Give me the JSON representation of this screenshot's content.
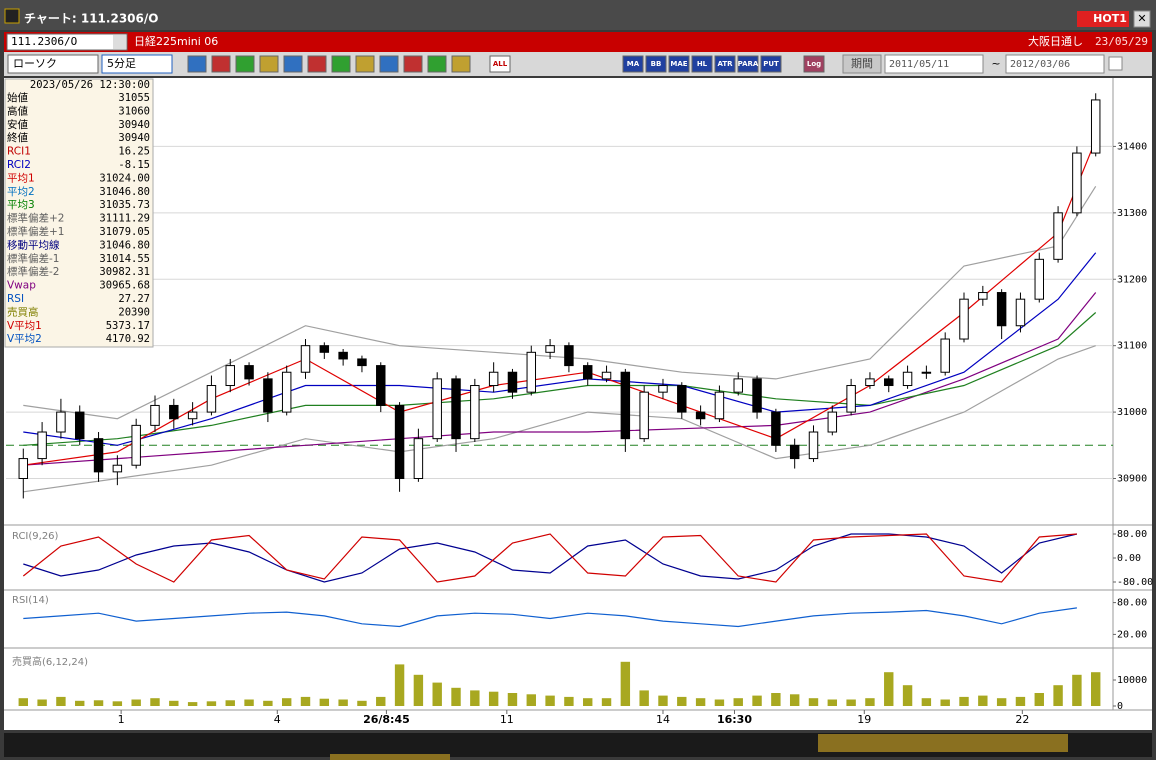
{
  "window": {
    "title": "チャート: 111.2306/O",
    "hot": "HOT1"
  },
  "header": {
    "symbol": "111.2306/O",
    "name": "日経225mini 06",
    "market": "大阪日通し",
    "date": "23/05/29"
  },
  "toolbar": {
    "chart_type": "ローソク",
    "interval": "5分足",
    "icons": [
      "ALL",
      "MA",
      "BB",
      "MAE",
      "HL",
      "ATR",
      "PARA",
      "PUT",
      "Log"
    ],
    "period_button": "期間",
    "date_from": "2011/05/11",
    "tilde": "~",
    "date_to": "2012/03/06"
  },
  "info_panel": {
    "datetime": "2023/05/26 12:30:00",
    "rows": [
      {
        "label": "始値",
        "value": "31055",
        "color": "#000000"
      },
      {
        "label": "高値",
        "value": "31060",
        "color": "#000000"
      },
      {
        "label": "安値",
        "value": "30940",
        "color": "#000000"
      },
      {
        "label": "終値",
        "value": "30940",
        "color": "#000000"
      },
      {
        "label": "RCI1",
        "value": "16.25",
        "color": "#c00000"
      },
      {
        "label": "RCI2",
        "value": "-8.15",
        "color": "#0000c0"
      },
      {
        "label": "平均1",
        "value": "31024.00",
        "color": "#d00000"
      },
      {
        "label": "平均2",
        "value": "31046.80",
        "color": "#0070c0"
      },
      {
        "label": "平均3",
        "value": "31035.73",
        "color": "#008000"
      },
      {
        "label": "標準偏差+2",
        "value": "31111.29",
        "color": "#606060"
      },
      {
        "label": "標準偏差+1",
        "value": "31079.05",
        "color": "#606060"
      },
      {
        "label": "移動平均線",
        "value": "31046.80",
        "color": "#000080"
      },
      {
        "label": "標準偏差-1",
        "value": "31014.55",
        "color": "#606060"
      },
      {
        "label": "標準偏差-2",
        "value": "30982.31",
        "color": "#606060"
      },
      {
        "label": "Vwap",
        "value": "30965.68",
        "color": "#800080"
      },
      {
        "label": "RSI",
        "value": "27.27",
        "color": "#0050c0"
      },
      {
        "label": "売買高",
        "value": "20390",
        "color": "#808000"
      },
      {
        "label": "V平均1",
        "value": "5373.17",
        "color": "#d00000"
      },
      {
        "label": "V平均2",
        "value": "4170.92",
        "color": "#0050c0"
      }
    ]
  },
  "chart_data": [
    {
      "type": "candlestick",
      "ylim": [
        30830,
        31500
      ],
      "yticks": [
        30900,
        31000,
        31100,
        31200,
        31300,
        31400
      ],
      "grid": true,
      "xlim": [
        -0.6,
        57.6
      ],
      "xticks": [
        {
          "value": 5.2,
          "label": "1"
        },
        {
          "value": 13.5,
          "label": "4"
        },
        {
          "value": 19.3,
          "label": "26/8:45"
        },
        {
          "value": 25.7,
          "label": "11"
        },
        {
          "value": 34,
          "label": "14"
        },
        {
          "value": 37.8,
          "label": "16:30"
        },
        {
          "value": 44.7,
          "label": "19"
        },
        {
          "value": 53.1,
          "label": "22"
        }
      ],
      "up_color": "#ffffff",
      "down_color": "#000000",
      "reference_line": 30950,
      "reference_color": "#208020",
      "ohlc": [
        [
          30900,
          30945,
          30870,
          30930
        ],
        [
          30930,
          30985,
          30920,
          30970
        ],
        [
          30970,
          31020,
          30960,
          31000
        ],
        [
          31000,
          31010,
          30950,
          30960
        ],
        [
          30960,
          30970,
          30895,
          30910
        ],
        [
          30910,
          30935,
          30890,
          30920
        ],
        [
          30920,
          30990,
          30915,
          30980
        ],
        [
          30980,
          31025,
          30970,
          31010
        ],
        [
          31010,
          31020,
          30975,
          30990
        ],
        [
          30990,
          31015,
          30980,
          31000
        ],
        [
          31000,
          31055,
          30995,
          31040
        ],
        [
          31040,
          31080,
          31030,
          31070
        ],
        [
          31070,
          31075,
          31040,
          31050
        ],
        [
          31050,
          31060,
          30985,
          31000
        ],
        [
          31000,
          31070,
          30995,
          31060
        ],
        [
          31060,
          31110,
          31050,
          31100
        ],
        [
          31100,
          31105,
          31080,
          31090
        ],
        [
          31090,
          31095,
          31070,
          31080
        ],
        [
          31080,
          31085,
          31060,
          31070
        ],
        [
          31070,
          31075,
          31000,
          31010
        ],
        [
          31010,
          31015,
          30880,
          30900
        ],
        [
          30900,
          30975,
          30895,
          30960
        ],
        [
          30960,
          31060,
          30955,
          31050
        ],
        [
          31050,
          31055,
          30940,
          30960
        ],
        [
          30960,
          31050,
          30955,
          31040
        ],
        [
          31040,
          31075,
          31030,
          31060
        ],
        [
          31060,
          31065,
          31020,
          31030
        ],
        [
          31030,
          31100,
          31025,
          31090
        ],
        [
          31090,
          31110,
          31080,
          31100
        ],
        [
          31100,
          31105,
          31060,
          31070
        ],
        [
          31070,
          31075,
          31040,
          31050
        ],
        [
          31050,
          31070,
          31045,
          31060
        ],
        [
          31060,
          31065,
          30940,
          30960
        ],
        [
          30960,
          31040,
          30955,
          31030
        ],
        [
          31030,
          31050,
          31020,
          31040
        ],
        [
          31040,
          31045,
          30990,
          31000
        ],
        [
          31000,
          31010,
          30980,
          30990
        ],
        [
          30990,
          31040,
          30985,
          31030
        ],
        [
          31030,
          31060,
          31025,
          31050
        ],
        [
          31050,
          31055,
          30990,
          31000
        ],
        [
          31000,
          31005,
          30940,
          30950
        ],
        [
          30950,
          30960,
          30915,
          30930
        ],
        [
          30930,
          30980,
          30925,
          30970
        ],
        [
          30970,
          31010,
          30965,
          31000
        ],
        [
          31000,
          31050,
          30995,
          31040
        ],
        [
          31040,
          31060,
          31035,
          31050
        ],
        [
          31050,
          31055,
          31030,
          31040
        ],
        [
          31040,
          31070,
          31035,
          31060
        ],
        [
          31060,
          31070,
          31050,
          31060
        ],
        [
          31060,
          31120,
          31055,
          31110
        ],
        [
          31110,
          31180,
          31105,
          31170
        ],
        [
          31170,
          31190,
          31160,
          31180
        ],
        [
          31180,
          31185,
          31110,
          31130
        ],
        [
          31130,
          31180,
          31120,
          31170
        ],
        [
          31170,
          31240,
          31165,
          31230
        ],
        [
          31230,
          31310,
          31225,
          31300
        ],
        [
          31300,
          31400,
          31295,
          31390
        ],
        [
          31390,
          31480,
          31385,
          31470
        ]
      ],
      "overlays": [
        {
          "color": "#a0a0a0",
          "x": [
            0,
            5,
            10,
            15,
            20,
            25,
            30,
            35,
            40,
            45,
            50,
            55,
            57
          ],
          "values": [
            31010,
            30990,
            31060,
            31130,
            31100,
            31090,
            31080,
            31060,
            31050,
            31080,
            31220,
            31250,
            31340
          ]
        },
        {
          "color": "#a0a0a0",
          "x": [
            0,
            5,
            10,
            15,
            20,
            25,
            30,
            35,
            40,
            45,
            50,
            55,
            57
          ],
          "values": [
            30880,
            30900,
            30920,
            30960,
            30940,
            30960,
            31000,
            30990,
            30930,
            30950,
            31000,
            31080,
            31100
          ]
        },
        {
          "color": "#800080",
          "x": [
            0,
            5,
            10,
            15,
            20,
            25,
            30,
            35,
            40,
            45,
            50,
            55,
            57
          ],
          "values": [
            30920,
            30930,
            30940,
            30950,
            30960,
            30970,
            30970,
            30975,
            30980,
            31000,
            31050,
            31110,
            31180
          ]
        },
        {
          "color": "#208020",
          "x": [
            0,
            5,
            10,
            15,
            20,
            25,
            30,
            35,
            40,
            45,
            50,
            55,
            57
          ],
          "values": [
            30950,
            30960,
            30980,
            31010,
            31010,
            31020,
            31040,
            31040,
            31020,
            31010,
            31040,
            31100,
            31150
          ]
        },
        {
          "color": "#0000c0",
          "x": [
            0,
            5,
            10,
            15,
            20,
            25,
            30,
            35,
            40,
            45,
            50,
            55,
            57
          ],
          "values": [
            30970,
            30950,
            30990,
            31040,
            31040,
            31030,
            31050,
            31040,
            31000,
            31010,
            31060,
            31170,
            31240
          ]
        },
        {
          "color": "#e00000",
          "x": [
            0,
            5,
            10,
            15,
            20,
            25,
            30,
            35,
            40,
            45,
            50,
            55,
            57
          ],
          "values": [
            30920,
            30940,
            31020,
            31080,
            31000,
            31040,
            31060,
            31010,
            30960,
            31040,
            31150,
            31270,
            31410
          ]
        }
      ]
    },
    {
      "type": "line",
      "title": "RCI(9,26)",
      "ylim": [
        -100,
        100
      ],
      "xlim": [
        -0.6,
        57.6
      ],
      "yticks": [
        {
          "value": 80,
          "label": "80.00"
        },
        {
          "value": 0,
          "label": "0.00"
        },
        {
          "value": -80,
          "label": "-80.00"
        }
      ],
      "series": [
        {
          "color": "#000090",
          "x": [
            0,
            2,
            4,
            6,
            8,
            10,
            12,
            14,
            16,
            18,
            20,
            22,
            24,
            26,
            28,
            30,
            32,
            34,
            36,
            38,
            40,
            42,
            44,
            46,
            48,
            50,
            52,
            54,
            56
          ],
          "values": [
            -20,
            -60,
            -40,
            10,
            40,
            50,
            20,
            -40,
            -80,
            -50,
            30,
            50,
            20,
            -40,
            -50,
            40,
            60,
            -20,
            -60,
            -70,
            -40,
            40,
            80,
            80,
            70,
            40,
            -50,
            50,
            80
          ]
        },
        {
          "color": "#d00000",
          "x": [
            0,
            2,
            4,
            6,
            8,
            10,
            12,
            14,
            16,
            18,
            20,
            22,
            24,
            26,
            28,
            30,
            32,
            34,
            36,
            38,
            40,
            42,
            44,
            46,
            48,
            50,
            52,
            54,
            56
          ],
          "values": [
            -60,
            40,
            70,
            -20,
            -80,
            60,
            75,
            -40,
            -70,
            70,
            60,
            -80,
            -60,
            50,
            80,
            -50,
            -60,
            70,
            75,
            -60,
            -80,
            60,
            70,
            75,
            80,
            -60,
            -80,
            70,
            80
          ]
        }
      ]
    },
    {
      "type": "line",
      "title": "RSI(14)",
      "ylim": [
        0,
        100
      ],
      "xlim": [
        -0.6,
        57.6
      ],
      "yticks": [
        {
          "value": 80,
          "label": "80.00"
        },
        {
          "value": 20,
          "label": "20.00"
        }
      ],
      "series": [
        {
          "color": "#1060d0",
          "x": [
            0,
            2,
            4,
            6,
            8,
            10,
            12,
            14,
            16,
            18,
            20,
            22,
            24,
            26,
            28,
            30,
            32,
            34,
            36,
            38,
            40,
            42,
            44,
            46,
            48,
            50,
            52,
            54,
            56
          ],
          "values": [
            50,
            55,
            60,
            45,
            50,
            55,
            60,
            62,
            55,
            40,
            35,
            55,
            60,
            58,
            50,
            60,
            55,
            45,
            40,
            35,
            45,
            55,
            60,
            62,
            65,
            55,
            40,
            60,
            70
          ]
        }
      ]
    },
    {
      "type": "bar",
      "title": "売買高(6,12,24)",
      "ylim": [
        0,
        20000
      ],
      "xlim": [
        -0.6,
        57.6
      ],
      "yticks": [
        0,
        10000
      ],
      "color": "#a8a820",
      "values": [
        3000,
        2500,
        3500,
        2000,
        2200,
        1800,
        2500,
        3000,
        2000,
        1500,
        1800,
        2200,
        2500,
        2000,
        3000,
        3500,
        2800,
        2500,
        2000,
        3500,
        16000,
        12000,
        9000,
        7000,
        6000,
        5500,
        5000,
        4500,
        4000,
        3500,
        3000,
        3000,
        17000,
        6000,
        4000,
        3500,
        3000,
        2500,
        3000,
        4000,
        5000,
        4500,
        3000,
        2500,
        2500,
        3000,
        13000,
        8000,
        3000,
        2500,
        3500,
        4000,
        3000,
        3500,
        5000,
        8000,
        12000,
        13000
      ]
    }
  ]
}
